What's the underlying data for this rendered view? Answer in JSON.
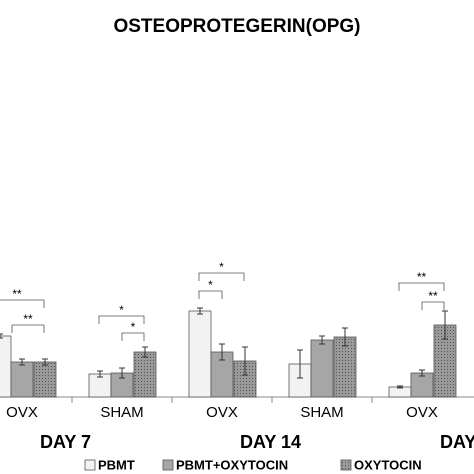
{
  "chart_data": {
    "type": "bar",
    "title": "OSTEOPROTEGERIN(OPG)",
    "categories": [
      "OVX",
      "SHAM",
      "OVX",
      "SHAM",
      "OVX"
    ],
    "days": [
      "DAY 7",
      "DAY 14",
      "DAY"
    ],
    "ylim": [
      0,
      340
    ],
    "series": [
      {
        "name": "PBMT",
        "color": "#f2f2f2",
        "values": [
          61,
          23,
          86,
          33,
          10
        ],
        "errors": [
          2,
          3,
          3,
          14,
          1
        ]
      },
      {
        "name": "PBMT+OXYTOCIN",
        "color": "#a6a6a6",
        "values": [
          35,
          24,
          45,
          57,
          24
        ],
        "errors": [
          3,
          5,
          8,
          4,
          3
        ]
      },
      {
        "name": "OXYTOCIN",
        "color": "#8c8c8c",
        "pattern": true,
        "values": [
          35,
          45,
          36,
          60,
          72
        ],
        "errors": [
          3,
          5,
          14,
          9,
          14
        ]
      }
    ],
    "annotations": [
      {
        "text": "**"
      },
      {
        "text": "**"
      },
      {
        "text": "*"
      },
      {
        "text": "*"
      },
      {
        "text": "*"
      },
      {
        "text": "*"
      },
      {
        "text": "**"
      },
      {
        "text": "**"
      }
    ]
  }
}
